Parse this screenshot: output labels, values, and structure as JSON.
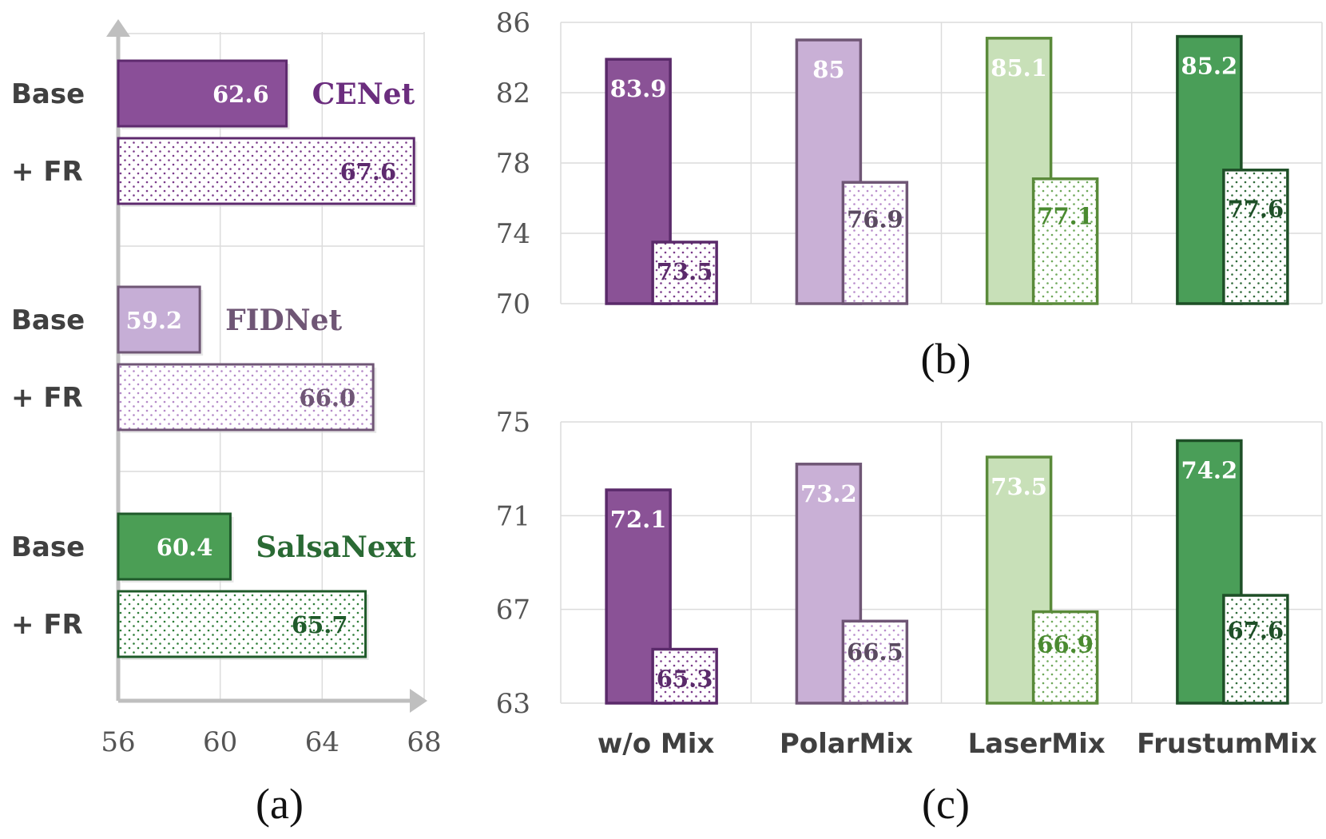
{
  "chart_data": [
    {
      "id": "a",
      "type": "bar",
      "orientation": "horizontal",
      "panel_label": "(a)",
      "x_ticks": [
        "56",
        "60",
        "64",
        "68"
      ],
      "xlim": [
        56,
        68
      ],
      "groups": [
        {
          "model": "CENet",
          "model_color": "#6b2d7e",
          "fill": "#8a4f98",
          "stroke": "#5e2a6e",
          "dot": "#7a3a8a",
          "rows": [
            {
              "label": "Base",
              "value": 62.6,
              "text": "62.6",
              "solid": true
            },
            {
              "label": "+ FR",
              "value": 67.6,
              "text": "67.6",
              "solid": false
            }
          ]
        },
        {
          "model": "FIDNet",
          "model_color": "#6f5675",
          "fill": "#c6aed6",
          "stroke": "#6f5675",
          "dot": "#b489c8",
          "rows": [
            {
              "label": "Base",
              "value": 59.2,
              "text": "59.2",
              "solid": true
            },
            {
              "label": "+ FR",
              "value": 66.0,
              "text": "66.0",
              "solid": false
            }
          ]
        },
        {
          "model": "SalsaNext",
          "model_color": "#2a6a34",
          "fill": "#4b9e55",
          "stroke": "#1f5a2a",
          "dot": "#2e7d38",
          "rows": [
            {
              "label": "Base",
              "value": 60.4,
              "text": "60.4",
              "solid": true
            },
            {
              "label": "+ FR",
              "value": 65.7,
              "text": "65.7",
              "solid": false
            }
          ]
        }
      ]
    },
    {
      "id": "b",
      "type": "bar",
      "panel_label": "(b)",
      "y_ticks": [
        "86",
        "82",
        "78",
        "74",
        "70"
      ],
      "ylim": [
        70,
        86
      ],
      "categories": [
        "w/o Mix",
        "PolarMix",
        "LaserMix",
        "FrustumMix"
      ],
      "series": [
        {
          "name": "Base",
          "values": [
            83.9,
            85,
            85.1,
            85.2
          ],
          "texts": [
            "83.9",
            "85",
            "85.1",
            "85.2"
          ],
          "solid": true
        },
        {
          "name": "+ FR",
          "values": [
            73.5,
            76.9,
            77.1,
            77.6
          ],
          "texts": [
            "73.5",
            "76.9",
            "77.1",
            "77.6"
          ],
          "solid": false
        }
      ]
    },
    {
      "id": "c",
      "type": "bar",
      "panel_label": "(c)",
      "y_ticks": [
        "75",
        "71",
        "67",
        "63"
      ],
      "ylim": [
        63,
        75
      ],
      "categories": [
        "w/o Mix",
        "PolarMix",
        "LaserMix",
        "FrustumMix"
      ],
      "series": [
        {
          "name": "Base",
          "values": [
            72.1,
            73.2,
            73.5,
            74.2
          ],
          "texts": [
            "72.1",
            "73.2",
            "73.5",
            "74.2"
          ],
          "solid": true
        },
        {
          "name": "+ FR",
          "values": [
            65.3,
            66.5,
            66.9,
            67.6
          ],
          "texts": [
            "65.3",
            "66.5",
            "66.9",
            "67.6"
          ],
          "solid": false
        }
      ]
    }
  ],
  "colors": {
    "solid_fill": [
      "#8a5296",
      "#c9b0d6",
      "#c8e0b8",
      "#4a9e58"
    ],
    "stroke": [
      "#5a2a6a",
      "#6f5675",
      "#5a8a3a",
      "#1e4f27"
    ],
    "dot": [
      "#7a3a8a",
      "#b88ccb",
      "#6ea85a",
      "#2e6a38"
    ],
    "solid_text": [
      "#ffffff",
      "#ffffff",
      "#ffffff",
      "#ffffff"
    ],
    "dotted_text": [
      "#5a2a6a",
      "#5a4a60",
      "#4a8a30",
      "#1e4f27"
    ],
    "axis": "#bfbfbf",
    "grid": "#dcdcdc"
  }
}
